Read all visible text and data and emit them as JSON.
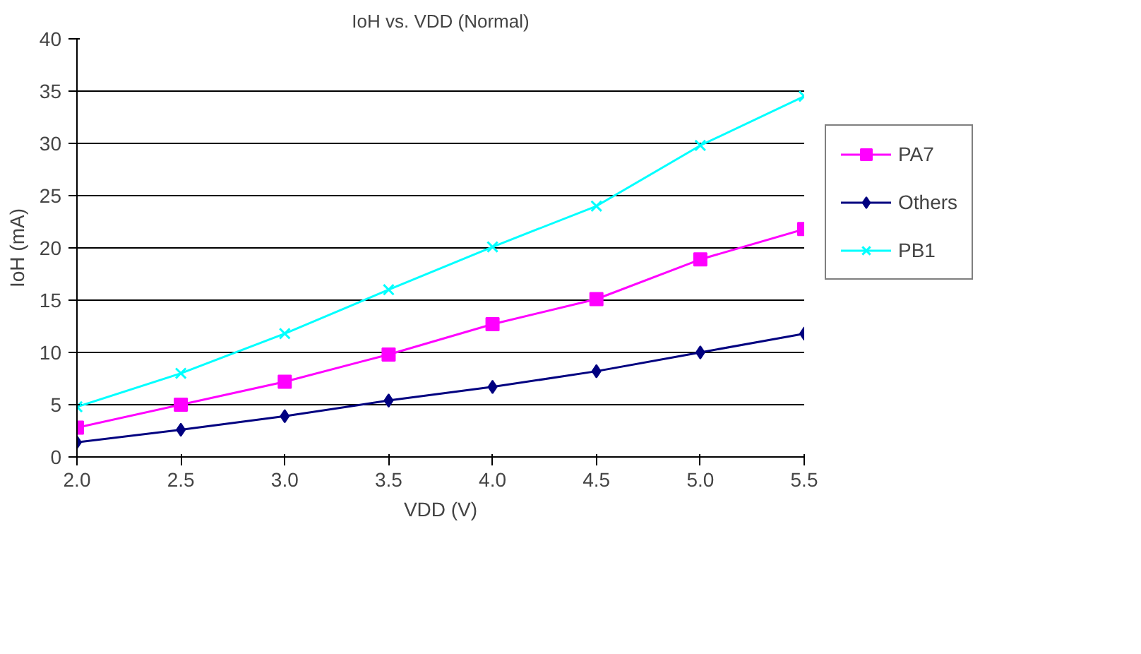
{
  "chart_data": {
    "type": "line",
    "title": "IoH vs. VDD (Normal)",
    "xlabel": "VDD (V)",
    "ylabel": "IoH (mA)",
    "x": [
      2.0,
      2.5,
      3.0,
      3.5,
      4.0,
      4.5,
      5.0,
      5.5
    ],
    "series": [
      {
        "name": "PA7",
        "color": "#ff00ff",
        "marker": "square",
        "values": [
          2.8,
          5.0,
          7.2,
          9.8,
          12.7,
          15.1,
          18.9,
          21.8
        ]
      },
      {
        "name": "Others",
        "color": "#000080",
        "marker": "diamond",
        "values": [
          1.4,
          2.6,
          3.9,
          5.4,
          6.7,
          8.2,
          10.0,
          11.8
        ]
      },
      {
        "name": "PB1",
        "color": "#00ffff",
        "marker": "cross",
        "values": [
          4.8,
          8.0,
          11.8,
          16.0,
          20.1,
          24.0,
          29.8,
          34.5
        ]
      }
    ],
    "xlim": [
      2.0,
      5.5
    ],
    "xticks": [
      {
        "value": 2.0,
        "label": "2.0"
      },
      {
        "value": 2.5,
        "label": "2.5"
      },
      {
        "value": 3.0,
        "label": "3.0"
      },
      {
        "value": 3.5,
        "label": "3.5"
      },
      {
        "value": 4.0,
        "label": "4.0"
      },
      {
        "value": 4.5,
        "label": "4.5"
      },
      {
        "value": 5.0,
        "label": "5.0"
      },
      {
        "value": 5.5,
        "label": "5.5"
      }
    ],
    "ylim": [
      0,
      40
    ],
    "yticks": [
      0,
      5,
      10,
      15,
      20,
      25,
      30,
      35,
      40
    ],
    "grid": "y",
    "legend": "right",
    "line_style": "solid"
  }
}
